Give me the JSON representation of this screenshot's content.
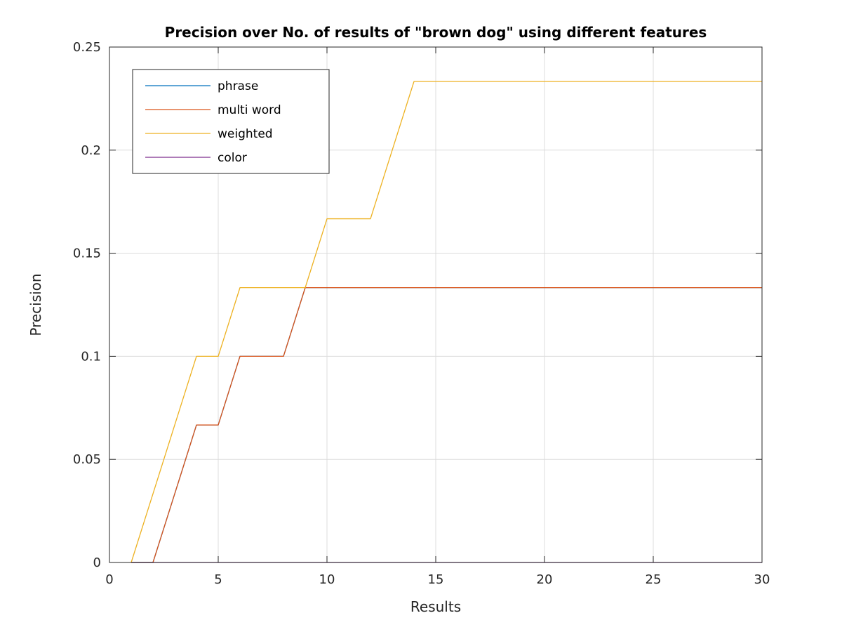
{
  "chart_data": {
    "type": "line",
    "title": "Precision over No. of results of \"brown dog\" using different features",
    "xlabel": "Results",
    "ylabel": "Precision",
    "xlim": [
      0,
      30
    ],
    "ylim": [
      0,
      0.25
    ],
    "grid": true,
    "legend_position": "top-left",
    "x_ticks": [
      0,
      5,
      10,
      15,
      20,
      25,
      30
    ],
    "x_tick_labels": [
      "0",
      "5",
      "10",
      "15",
      "20",
      "25",
      "30"
    ],
    "y_ticks": [
      0,
      0.05,
      0.1,
      0.15,
      0.2,
      0.25
    ],
    "y_tick_labels": [
      "0",
      "0.05",
      "0.1",
      "0.15",
      "0.2",
      "0.25"
    ],
    "x": [
      1,
      2,
      3,
      4,
      5,
      6,
      7,
      8,
      9,
      10,
      11,
      12,
      13,
      14,
      15,
      16,
      17,
      18,
      19,
      20,
      21,
      22,
      23,
      24,
      25,
      26,
      27,
      28,
      29,
      30
    ],
    "series": [
      {
        "name": "phrase",
        "color": "#0072BD",
        "values": [
          0,
          0,
          0.0333,
          0.0667,
          0.0667,
          0.1,
          0.1,
          0.1,
          0.1333,
          0.1333,
          0.1333,
          0.1333,
          0.1333,
          0.1333,
          0.1333,
          0.1333,
          0.1333,
          0.1333,
          0.1333,
          0.1333,
          0.1333,
          0.1333,
          0.1333,
          0.1333,
          0.1333,
          0.1333,
          0.1333,
          0.1333,
          0.1333,
          0.1333
        ]
      },
      {
        "name": "multi word",
        "color": "#D95319",
        "values": [
          0,
          0,
          0.0333,
          0.0667,
          0.0667,
          0.1,
          0.1,
          0.1,
          0.1333,
          0.1333,
          0.1333,
          0.1333,
          0.1333,
          0.1333,
          0.1333,
          0.1333,
          0.1333,
          0.1333,
          0.1333,
          0.1333,
          0.1333,
          0.1333,
          0.1333,
          0.1333,
          0.1333,
          0.1333,
          0.1333,
          0.1333,
          0.1333,
          0.1333
        ]
      },
      {
        "name": "weighted",
        "color": "#EDB120",
        "values": [
          0,
          0.0333,
          0.0667,
          0.1,
          0.1,
          0.1333,
          0.1333,
          0.1333,
          0.1333,
          0.1667,
          0.1667,
          0.1667,
          0.2,
          0.2333,
          0.2333,
          0.2333,
          0.2333,
          0.2333,
          0.2333,
          0.2333,
          0.2333,
          0.2333,
          0.2333,
          0.2333,
          0.2333,
          0.2333,
          0.2333,
          0.2333,
          0.2333,
          0.2333
        ]
      },
      {
        "name": "color",
        "color": "#7E2F8E",
        "values": [
          0,
          0,
          0,
          0,
          0,
          0,
          0,
          0,
          0,
          0,
          0,
          0,
          0,
          0,
          0,
          0,
          0,
          0,
          0,
          0,
          0,
          0,
          0,
          0,
          0,
          0,
          0,
          0,
          0,
          0
        ]
      }
    ]
  }
}
